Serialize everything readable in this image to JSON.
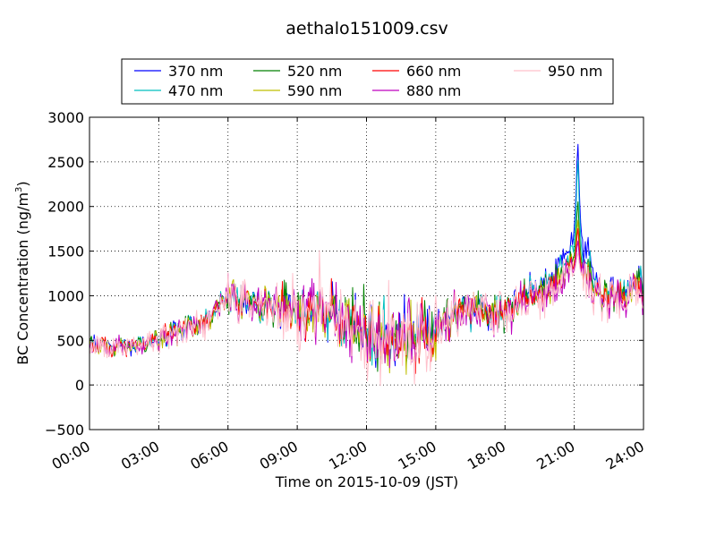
{
  "chart_data": {
    "type": "line",
    "title": "aethalo151009.csv",
    "xlabel": "Time on 2015-10-09 (JST)",
    "ylabel_main": "BC Concentration (ng/m",
    "ylabel_sup": "3",
    "ylabel_close": ")",
    "xlim_hours": [
      0,
      24
    ],
    "ylim": [
      -500,
      3000
    ],
    "x_ticks": [
      {
        "hour": 0,
        "label": "00:00"
      },
      {
        "hour": 3,
        "label": "03:00"
      },
      {
        "hour": 6,
        "label": "06:00"
      },
      {
        "hour": 9,
        "label": "09:00"
      },
      {
        "hour": 12,
        "label": "12:00"
      },
      {
        "hour": 15,
        "label": "15:00"
      },
      {
        "hour": 18,
        "label": "18:00"
      },
      {
        "hour": 21,
        "label": "21:00"
      },
      {
        "hour": 24,
        "label": "24:00"
      }
    ],
    "y_ticks": [
      {
        "value": -500,
        "label": "−500"
      },
      {
        "value": 0,
        "label": "0"
      },
      {
        "value": 500,
        "label": "500"
      },
      {
        "value": 1000,
        "label": "1000"
      },
      {
        "value": 1500,
        "label": "1500"
      },
      {
        "value": 2000,
        "label": "2000"
      },
      {
        "value": 2500,
        "label": "2500"
      },
      {
        "value": 3000,
        "label": "3000"
      }
    ],
    "grid": true,
    "legend_position": "top",
    "series": [
      {
        "name": "370 nm",
        "color": "#0000ff",
        "scale": 1.03,
        "phase": 0.0,
        "peak": 2800,
        "peak_t": 21.15,
        "spike": 0.1,
        "noise": 140,
        "x": [
          0,
          2,
          3,
          5,
          6,
          8,
          10,
          12,
          13,
          15,
          16,
          18,
          19,
          20,
          21,
          21.6,
          22,
          23,
          24
        ],
        "y": [
          450,
          430,
          520,
          700,
          1000,
          880,
          800,
          620,
          480,
          620,
          860,
          800,
          1060,
          1200,
          1600,
          1550,
          1050,
          1040,
          1150
        ]
      },
      {
        "name": "470 nm",
        "color": "#00bfbf",
        "scale": 1.01,
        "phase": 0.7,
        "peak": 2620,
        "peak_t": 21.15,
        "spike": 0.08,
        "noise": 145,
        "x": [
          0,
          2,
          3,
          5,
          6,
          8,
          10,
          12,
          13,
          15,
          16,
          18,
          19,
          20,
          21,
          21.6,
          22,
          23,
          24
        ],
        "y": [
          450,
          430,
          520,
          700,
          1000,
          880,
          800,
          620,
          480,
          620,
          860,
          800,
          1040,
          1150,
          1450,
          1380,
          1030,
          1030,
          1120
        ]
      },
      {
        "name": "520 nm",
        "color": "#008000",
        "scale": 1.0,
        "phase": 1.4,
        "peak": 2120,
        "peak_t": 21.15,
        "spike": 0.07,
        "noise": 150,
        "x": [
          0,
          2,
          3,
          5,
          6,
          8,
          10,
          12,
          13,
          15,
          16,
          18,
          19,
          20,
          21,
          21.6,
          22,
          23,
          24
        ],
        "y": [
          440,
          430,
          520,
          700,
          990,
          870,
          800,
          620,
          470,
          600,
          850,
          790,
          1010,
          1100,
          1350,
          1280,
          1000,
          1010,
          1090
        ]
      },
      {
        "name": "590 nm",
        "color": "#bfbf00",
        "scale": 0.99,
        "phase": 2.1,
        "peak": 1900,
        "peak_t": 21.15,
        "spike": 0.06,
        "noise": 155,
        "x": [
          0,
          2,
          3,
          5,
          6,
          8,
          10,
          12,
          13,
          15,
          16,
          18,
          19,
          20,
          21,
          21.6,
          22,
          23,
          24
        ],
        "y": [
          440,
          430,
          520,
          700,
          990,
          870,
          800,
          620,
          460,
          590,
          850,
          790,
          1000,
          1080,
          1300,
          1240,
          990,
          1000,
          1080
        ]
      },
      {
        "name": "660 nm",
        "color": "#ff0000",
        "scale": 1.0,
        "phase": 2.8,
        "peak": 1800,
        "peak_t": 21.15,
        "spike": 0.06,
        "noise": 150,
        "x": [
          0,
          2,
          3,
          5,
          6,
          8,
          10,
          12,
          13,
          15,
          16,
          18,
          19,
          20,
          21,
          21.6,
          22,
          23,
          24
        ],
        "y": [
          440,
          430,
          520,
          700,
          990,
          870,
          800,
          620,
          460,
          590,
          850,
          790,
          990,
          1060,
          1280,
          1220,
          990,
          1010,
          1060
        ]
      },
      {
        "name": "880 nm",
        "color": "#bf00bf",
        "scale": 1.0,
        "phase": 3.5,
        "peak": 1650,
        "peak_t": 21.15,
        "spike": 0.13,
        "noise": 175,
        "x": [
          0,
          2,
          3,
          5,
          6,
          8,
          10,
          12,
          13,
          15,
          16,
          18,
          19,
          20,
          21,
          21.6,
          22,
          23,
          24
        ],
        "y": [
          430,
          420,
          510,
          700,
          1000,
          880,
          800,
          600,
          460,
          580,
          840,
          780,
          970,
          1040,
          1250,
          1200,
          970,
          990,
          1040
        ]
      },
      {
        "name": "950 nm",
        "color": "#ffc0cb",
        "scale": 0.98,
        "phase": 4.2,
        "peak": 1500,
        "peak_t": 21.15,
        "spike": 0.14,
        "noise": 200,
        "x": [
          0,
          2,
          3,
          5,
          6,
          8,
          10,
          12,
          13,
          15,
          16,
          18,
          19,
          20,
          21,
          21.6,
          22,
          23,
          24
        ],
        "y": [
          430,
          420,
          510,
          690,
          980,
          860,
          780,
          560,
          440,
          570,
          830,
          770,
          950,
          1020,
          1230,
          1180,
          960,
          980,
          1030
        ]
      }
    ]
  }
}
